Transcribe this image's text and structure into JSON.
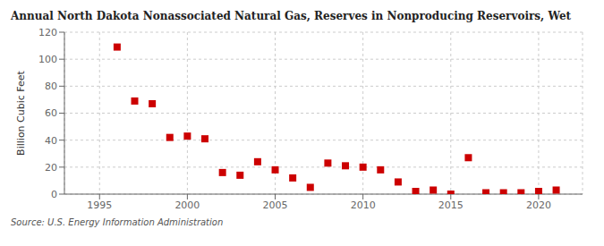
{
  "chart_data": {
    "type": "scatter",
    "title": "Annual North Dakota Nonassociated Natural Gas, Reserves in Nonproducing Reservoirs, Wet",
    "y_label": "Billion Cubic Feet",
    "annotations": [
      "Source: U.S. Energy Information Administration"
    ],
    "x": [
      1996,
      1997,
      1998,
      1999,
      2000,
      2001,
      2002,
      2003,
      2004,
      2005,
      2006,
      2007,
      2008,
      2009,
      2010,
      2011,
      2012,
      2013,
      2014,
      2015,
      2016,
      2017,
      2018,
      2019,
      2020,
      2021
    ],
    "values": [
      109,
      69,
      67,
      42,
      43,
      41,
      16,
      14,
      24,
      18,
      12,
      5,
      23,
      21,
      20,
      18,
      9,
      2,
      3,
      0,
      27,
      1,
      1,
      1,
      2,
      3
    ],
    "color": "#cc0000",
    "marker": "square",
    "xlim": [
      1993,
      2022.5
    ],
    "xticks": [
      1995,
      2000,
      2005,
      2010,
      2015,
      2020
    ],
    "ylim": [
      0,
      120
    ],
    "yticks": [
      0,
      20,
      40,
      60,
      80,
      100,
      120
    ],
    "grid": true
  }
}
